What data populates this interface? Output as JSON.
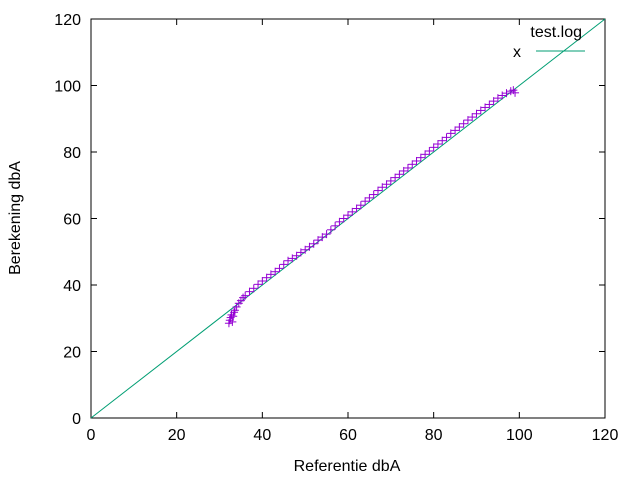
{
  "chart_data": {
    "type": "scatter",
    "xlabel": "Referentie dbA",
    "ylabel": "Berekening dbA",
    "xlim": [
      0,
      120
    ],
    "ylim": [
      0,
      120
    ],
    "xticks": [
      "0",
      "20",
      "40",
      "60",
      "80",
      "100",
      "120"
    ],
    "yticks": [
      "0",
      "20",
      "40",
      "60",
      "80",
      "100",
      "120"
    ],
    "grid": false,
    "legend_position": "top-right",
    "legend_title": "test.log",
    "series": [
      {
        "name": "x",
        "kind": "line",
        "color": "#009e73",
        "points": [
          [
            0,
            0
          ],
          [
            120,
            120
          ]
        ]
      },
      {
        "name": "",
        "kind": "points",
        "marker": "plus",
        "color": "#9400d3",
        "points": [
          [
            32.2,
            28.5
          ],
          [
            32.4,
            29.4
          ],
          [
            32.6,
            30.2
          ],
          [
            32.8,
            31.0
          ],
          [
            33.0,
            28.9
          ],
          [
            33.2,
            30.6
          ],
          [
            33.4,
            31.8
          ],
          [
            33.6,
            32.4
          ],
          [
            34.0,
            33.4
          ],
          [
            34.5,
            34.5
          ],
          [
            35.0,
            35.3
          ],
          [
            35.5,
            36.2
          ],
          [
            36.0,
            36.8
          ],
          [
            37.0,
            38.0
          ],
          [
            38.0,
            39.0
          ],
          [
            39.0,
            40.2
          ],
          [
            40.0,
            41.2
          ],
          [
            41.0,
            42.2
          ],
          [
            42.0,
            43.2
          ],
          [
            43.0,
            44.0
          ],
          [
            44.0,
            45.0
          ],
          [
            45.0,
            46.2
          ],
          [
            46.0,
            47.3
          ],
          [
            47.0,
            48.0
          ],
          [
            48.0,
            48.8
          ],
          [
            49.0,
            49.8
          ],
          [
            50.0,
            50.6
          ],
          [
            51.0,
            51.5
          ],
          [
            52.0,
            52.4
          ],
          [
            53.0,
            53.5
          ],
          [
            54.0,
            54.4
          ],
          [
            55.0,
            55.3
          ],
          [
            56.0,
            56.6
          ],
          [
            57.0,
            57.8
          ],
          [
            58.0,
            59.0
          ],
          [
            59.0,
            60.0
          ],
          [
            60.0,
            61.0
          ],
          [
            61.0,
            62.0
          ],
          [
            62.0,
            63.0
          ],
          [
            63.0,
            64.0
          ],
          [
            64.0,
            65.2
          ],
          [
            65.0,
            66.2
          ],
          [
            66.0,
            67.2
          ],
          [
            67.0,
            68.4
          ],
          [
            68.0,
            69.4
          ],
          [
            69.0,
            70.3
          ],
          [
            70.0,
            71.3
          ],
          [
            71.0,
            72.3
          ],
          [
            72.0,
            73.3
          ],
          [
            73.0,
            74.3
          ],
          [
            74.0,
            75.2
          ],
          [
            75.0,
            76.3
          ],
          [
            76.0,
            77.3
          ],
          [
            77.0,
            78.3
          ],
          [
            78.0,
            79.3
          ],
          [
            79.0,
            80.3
          ],
          [
            80.0,
            81.4
          ],
          [
            81.0,
            82.4
          ],
          [
            82.0,
            83.4
          ],
          [
            83.0,
            84.4
          ],
          [
            84.0,
            85.6
          ],
          [
            85.0,
            86.5
          ],
          [
            86.0,
            87.5
          ],
          [
            87.0,
            88.5
          ],
          [
            88.0,
            89.6
          ],
          [
            89.0,
            90.5
          ],
          [
            90.0,
            91.5
          ],
          [
            91.0,
            92.5
          ],
          [
            92.0,
            93.4
          ],
          [
            93.0,
            94.3
          ],
          [
            94.0,
            95.3
          ],
          [
            95.0,
            96.2
          ],
          [
            96.0,
            97.0
          ],
          [
            97.0,
            97.7
          ],
          [
            98.0,
            98.3
          ],
          [
            98.6,
            98.6
          ],
          [
            99.0,
            97.8
          ]
        ]
      }
    ]
  }
}
